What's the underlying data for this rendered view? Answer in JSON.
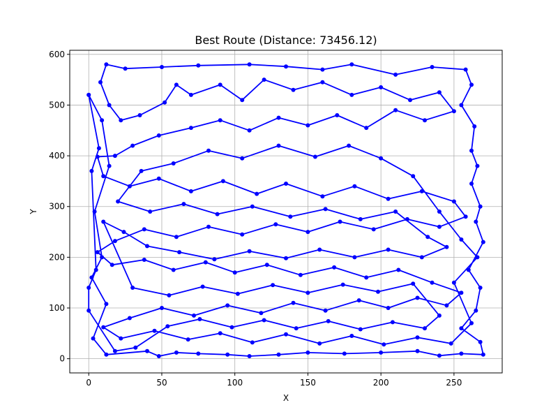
{
  "chart_data": {
    "type": "line",
    "title": "Best Route (Distance: 73456.12)",
    "xlabel": "X",
    "ylabel": "Y",
    "xlim": [
      -13,
      283
    ],
    "ylim": [
      -28,
      608
    ],
    "xticks": [
      0,
      50,
      100,
      150,
      200,
      250
    ],
    "yticks": [
      0,
      100,
      200,
      300,
      400,
      500,
      600
    ],
    "grid": true,
    "colors": {
      "route": "#0000ff"
    },
    "series": [
      {
        "markers": true,
        "points": [
          [
            0,
            520
          ],
          [
            9,
            470
          ],
          [
            14,
            380
          ],
          [
            4,
            290
          ],
          [
            9,
            200
          ],
          [
            2,
            160
          ],
          [
            12,
            108
          ],
          [
            3,
            40
          ],
          [
            12,
            8
          ],
          [
            40,
            15
          ],
          [
            48,
            5
          ],
          [
            60,
            12
          ],
          [
            75,
            10
          ],
          [
            95,
            8
          ],
          [
            110,
            5
          ],
          [
            130,
            8
          ],
          [
            150,
            12
          ],
          [
            175,
            10
          ],
          [
            200,
            12
          ],
          [
            225,
            15
          ],
          [
            240,
            6
          ],
          [
            255,
            10
          ],
          [
            270,
            8
          ],
          [
            268,
            33
          ],
          [
            255,
            60
          ],
          [
            265,
            95
          ],
          [
            268,
            140
          ],
          [
            260,
            175
          ],
          [
            270,
            230
          ],
          [
            265,
            270
          ],
          [
            268,
            300
          ],
          [
            262,
            345
          ],
          [
            266,
            380
          ],
          [
            262,
            410
          ],
          [
            264,
            458
          ],
          [
            255,
            500
          ],
          [
            262,
            540
          ],
          [
            258,
            570
          ],
          [
            235,
            575
          ],
          [
            210,
            560
          ],
          [
            180,
            580
          ],
          [
            160,
            570
          ],
          [
            135,
            576
          ],
          [
            110,
            580
          ],
          [
            75,
            578
          ],
          [
            50,
            575
          ],
          [
            25,
            572
          ],
          [
            12,
            580
          ],
          [
            8,
            545
          ],
          [
            14,
            500
          ],
          [
            22,
            470
          ],
          [
            35,
            480
          ],
          [
            52,
            505
          ],
          [
            60,
            540
          ],
          [
            70,
            520
          ],
          [
            90,
            540
          ],
          [
            105,
            510
          ],
          [
            120,
            550
          ],
          [
            140,
            530
          ],
          [
            160,
            545
          ],
          [
            180,
            520
          ],
          [
            200,
            535
          ],
          [
            220,
            510
          ],
          [
            240,
            525
          ],
          [
            250,
            488
          ],
          [
            230,
            470
          ],
          [
            210,
            490
          ],
          [
            190,
            455
          ],
          [
            170,
            480
          ],
          [
            150,
            460
          ],
          [
            130,
            475
          ],
          [
            110,
            450
          ],
          [
            90,
            470
          ],
          [
            70,
            455
          ],
          [
            48,
            440
          ],
          [
            30,
            420
          ],
          [
            18,
            400
          ],
          [
            6,
            398
          ],
          [
            10,
            360
          ],
          [
            28,
            340
          ],
          [
            48,
            355
          ],
          [
            70,
            330
          ],
          [
            92,
            350
          ],
          [
            115,
            325
          ],
          [
            135,
            345
          ],
          [
            160,
            320
          ],
          [
            182,
            340
          ],
          [
            205,
            315
          ],
          [
            228,
            330
          ],
          [
            250,
            310
          ],
          [
            258,
            280
          ],
          [
            240,
            260
          ],
          [
            218,
            275
          ],
          [
            195,
            255
          ],
          [
            172,
            270
          ],
          [
            150,
            250
          ],
          [
            128,
            265
          ],
          [
            105,
            245
          ],
          [
            82,
            260
          ],
          [
            60,
            240
          ],
          [
            38,
            255
          ],
          [
            18,
            232
          ],
          [
            6,
            210
          ],
          [
            16,
            185
          ],
          [
            38,
            195
          ],
          [
            58,
            175
          ],
          [
            80,
            190
          ],
          [
            100,
            170
          ],
          [
            122,
            185
          ],
          [
            145,
            165
          ],
          [
            168,
            180
          ],
          [
            190,
            160
          ],
          [
            212,
            175
          ],
          [
            235,
            150
          ],
          [
            255,
            130
          ],
          [
            245,
            105
          ],
          [
            225,
            120
          ],
          [
            205,
            100
          ],
          [
            185,
            115
          ],
          [
            162,
            95
          ],
          [
            140,
            110
          ],
          [
            118,
            90
          ],
          [
            95,
            105
          ],
          [
            72,
            85
          ],
          [
            50,
            100
          ],
          [
            28,
            80
          ],
          [
            10,
            62
          ],
          [
            22,
            40
          ],
          [
            45,
            55
          ],
          [
            68,
            38
          ],
          [
            90,
            50
          ],
          [
            112,
            32
          ],
          [
            135,
            48
          ],
          [
            158,
            30
          ],
          [
            180,
            45
          ],
          [
            202,
            28
          ],
          [
            225,
            42
          ],
          [
            248,
            30
          ],
          [
            262,
            70
          ],
          [
            250,
            150
          ],
          [
            266,
            200
          ],
          [
            255,
            235
          ],
          [
            240,
            290
          ],
          [
            222,
            360
          ],
          [
            200,
            395
          ],
          [
            178,
            420
          ],
          [
            155,
            398
          ],
          [
            130,
            420
          ],
          [
            105,
            395
          ],
          [
            82,
            410
          ],
          [
            58,
            385
          ],
          [
            36,
            370
          ],
          [
            20,
            310
          ],
          [
            42,
            290
          ],
          [
            65,
            305
          ],
          [
            88,
            285
          ],
          [
            112,
            300
          ],
          [
            138,
            280
          ],
          [
            162,
            295
          ],
          [
            186,
            275
          ],
          [
            210,
            290
          ],
          [
            232,
            240
          ],
          [
            245,
            220
          ],
          [
            228,
            200
          ],
          [
            205,
            215
          ],
          [
            182,
            200
          ],
          [
            158,
            215
          ],
          [
            135,
            198
          ],
          [
            110,
            212
          ],
          [
            86,
            196
          ],
          [
            62,
            210
          ],
          [
            40,
            222
          ],
          [
            24,
            250
          ],
          [
            10,
            270
          ],
          [
            30,
            140
          ],
          [
            55,
            125
          ],
          [
            78,
            142
          ],
          [
            102,
            128
          ],
          [
            126,
            145
          ],
          [
            150,
            130
          ],
          [
            174,
            146
          ],
          [
            198,
            132
          ],
          [
            222,
            148
          ],
          [
            240,
            85
          ],
          [
            230,
            60
          ],
          [
            208,
            72
          ],
          [
            186,
            58
          ],
          [
            164,
            74
          ],
          [
            142,
            60
          ],
          [
            120,
            76
          ],
          [
            98,
            62
          ],
          [
            76,
            78
          ],
          [
            54,
            64
          ],
          [
            32,
            22
          ],
          [
            18,
            15
          ],
          [
            0,
            95
          ],
          [
            0,
            140
          ],
          [
            5,
            175
          ],
          [
            2,
            370
          ],
          [
            7,
            415
          ],
          [
            0,
            520
          ]
        ]
      }
    ]
  }
}
